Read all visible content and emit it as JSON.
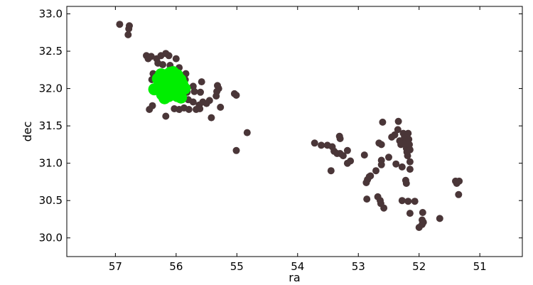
{
  "chart_data": {
    "type": "scatter",
    "title": "",
    "xlabel": "ra",
    "ylabel": "dec",
    "xlim": [
      57.8,
      50.3
    ],
    "ylim": [
      29.75,
      33.1
    ],
    "x_inverted": true,
    "grid": false,
    "legend": "none",
    "xticks": [
      "57",
      "56",
      "55",
      "54",
      "53",
      "52",
      "51"
    ],
    "xtick_values": [
      57,
      56,
      55,
      54,
      53,
      52,
      51
    ],
    "yticks": [
      "30.0",
      "30.5",
      "31.0",
      "31.5",
      "32.0",
      "32.5",
      "33.0"
    ],
    "ytick_values": [
      30.0,
      30.5,
      31.0,
      31.5,
      32.0,
      32.5,
      33.0
    ],
    "series": [
      {
        "color": "#4a3638",
        "marker_size": "small",
        "points": [
          [
            56.93,
            32.86
          ],
          [
            56.78,
            32.8
          ],
          [
            56.77,
            32.84
          ],
          [
            56.79,
            32.72
          ],
          [
            56.49,
            32.44
          ],
          [
            56.46,
            32.4
          ],
          [
            56.41,
            32.43
          ],
          [
            56.32,
            32.4
          ],
          [
            56.25,
            32.44
          ],
          [
            56.17,
            32.47
          ],
          [
            56.12,
            32.44
          ],
          [
            56.0,
            32.4
          ],
          [
            56.3,
            32.34
          ],
          [
            56.22,
            32.32
          ],
          [
            56.1,
            32.31
          ],
          [
            55.95,
            32.28
          ],
          [
            56.38,
            32.2
          ],
          [
            55.84,
            32.2
          ],
          [
            56.4,
            32.12
          ],
          [
            55.85,
            32.12
          ],
          [
            55.72,
            32.03
          ],
          [
            55.58,
            32.09
          ],
          [
            55.82,
            31.95
          ],
          [
            55.7,
            31.96
          ],
          [
            55.6,
            31.95
          ],
          [
            55.32,
            32.04
          ],
          [
            55.33,
            31.96
          ],
          [
            55.3,
            32.0
          ],
          [
            55.34,
            31.9
          ],
          [
            55.04,
            31.93
          ],
          [
            55.01,
            31.91
          ],
          [
            55.88,
            31.88
          ],
          [
            55.8,
            31.85
          ],
          [
            55.72,
            31.82
          ],
          [
            55.62,
            31.78
          ],
          [
            55.56,
            31.82
          ],
          [
            55.5,
            31.8
          ],
          [
            55.45,
            31.84
          ],
          [
            56.44,
            31.72
          ],
          [
            56.39,
            31.77
          ],
          [
            56.03,
            31.73
          ],
          [
            55.95,
            31.72
          ],
          [
            55.87,
            31.74
          ],
          [
            55.79,
            31.72
          ],
          [
            55.67,
            31.72
          ],
          [
            55.61,
            31.73
          ],
          [
            55.27,
            31.75
          ],
          [
            56.17,
            31.63
          ],
          [
            55.42,
            31.61
          ],
          [
            54.83,
            31.41
          ],
          [
            55.01,
            31.17
          ],
          [
            53.72,
            31.27
          ],
          [
            53.61,
            31.24
          ],
          [
            53.51,
            31.24
          ],
          [
            53.43,
            31.22
          ],
          [
            53.4,
            31.16
          ],
          [
            53.35,
            31.13
          ],
          [
            53.3,
            31.13
          ],
          [
            53.25,
            31.1
          ],
          [
            53.18,
            31.17
          ],
          [
            53.31,
            31.36
          ],
          [
            53.3,
            31.33
          ],
          [
            53.18,
            31.0
          ],
          [
            53.13,
            31.03
          ],
          [
            53.45,
            30.9
          ],
          [
            52.9,
            31.11
          ],
          [
            52.8,
            30.83
          ],
          [
            52.82,
            30.82
          ],
          [
            52.85,
            30.78
          ],
          [
            52.87,
            30.74
          ],
          [
            52.71,
            30.9
          ],
          [
            52.62,
            30.98
          ],
          [
            52.62,
            31.04
          ],
          [
            52.62,
            31.25
          ],
          [
            52.66,
            31.27
          ],
          [
            52.6,
            31.55
          ],
          [
            52.86,
            30.52
          ],
          [
            52.68,
            30.55
          ],
          [
            52.64,
            30.5
          ],
          [
            52.63,
            30.46
          ],
          [
            52.58,
            30.4
          ],
          [
            52.5,
            31.08
          ],
          [
            52.45,
            31.35
          ],
          [
            52.4,
            31.38
          ],
          [
            52.38,
            30.99
          ],
          [
            52.35,
            31.45
          ],
          [
            52.34,
            31.56
          ],
          [
            52.32,
            31.3
          ],
          [
            52.3,
            31.25
          ],
          [
            52.28,
            30.95
          ],
          [
            52.26,
            31.4
          ],
          [
            52.24,
            31.35
          ],
          [
            52.22,
            31.28
          ],
          [
            52.21,
            31.2
          ],
          [
            52.2,
            31.15
          ],
          [
            52.19,
            31.1
          ],
          [
            52.22,
            30.77
          ],
          [
            52.21,
            30.73
          ],
          [
            52.18,
            31.4
          ],
          [
            52.17,
            31.32
          ],
          [
            52.16,
            31.25
          ],
          [
            52.15,
            31.18
          ],
          [
            52.15,
            31.02
          ],
          [
            52.15,
            30.92
          ],
          [
            52.28,
            30.5
          ],
          [
            52.18,
            30.49
          ],
          [
            52.07,
            30.49
          ],
          [
            52.15,
            30.33
          ],
          [
            51.94,
            30.34
          ],
          [
            51.95,
            30.24
          ],
          [
            51.95,
            30.18
          ],
          [
            51.93,
            30.21
          ],
          [
            52.0,
            30.14
          ],
          [
            51.66,
            30.26
          ],
          [
            51.4,
            30.76
          ],
          [
            51.38,
            30.73
          ],
          [
            51.34,
            30.76
          ],
          [
            51.35,
            30.58
          ]
        ]
      },
      {
        "color": "#00ee00",
        "marker_size": "large",
        "points": [
          [
            56.36,
            31.99
          ],
          [
            56.3,
            32.13
          ],
          [
            56.25,
            32.19
          ],
          [
            56.18,
            32.18
          ],
          [
            56.1,
            32.21
          ],
          [
            56.05,
            32.22
          ],
          [
            55.98,
            32.18
          ],
          [
            55.93,
            32.12
          ],
          [
            55.9,
            32.06
          ],
          [
            55.86,
            32.0
          ],
          [
            55.95,
            31.98
          ],
          [
            56.02,
            31.95
          ],
          [
            56.1,
            31.99
          ],
          [
            56.18,
            32.02
          ],
          [
            56.23,
            31.92
          ],
          [
            56.19,
            31.87
          ],
          [
            56.12,
            31.9
          ],
          [
            56.05,
            32.08
          ],
          [
            55.98,
            31.9
          ],
          [
            55.92,
            31.88
          ],
          [
            56.27,
            32.05
          ],
          [
            56.15,
            32.1
          ],
          [
            56.08,
            32.15
          ],
          [
            55.95,
            32.05
          ]
        ]
      }
    ]
  }
}
